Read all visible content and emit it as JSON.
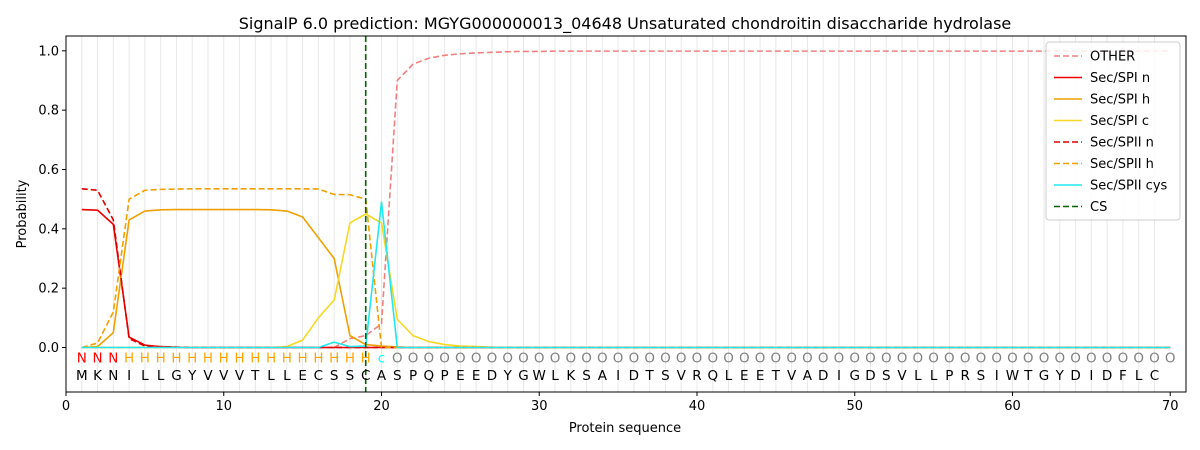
{
  "chart_data": {
    "type": "line",
    "title": "SignalP 6.0 prediction: MGYG000000013_04648 Unsaturated chondroitin disaccharide hydrolase",
    "xlabel": "Protein sequence",
    "ylabel": "Probability",
    "xlim": [
      0,
      71
    ],
    "ylim": [
      -0.15,
      1.05
    ],
    "x_ticks": [
      0,
      10,
      20,
      30,
      40,
      50,
      60,
      70
    ],
    "y_ticks": [
      0.0,
      0.2,
      0.4,
      0.6,
      0.8,
      1.0
    ],
    "x_tick_labels": [
      "0",
      "10",
      "20",
      "30",
      "40",
      "50",
      "60",
      "70"
    ],
    "y_tick_labels": [
      "0.0",
      "0.2",
      "0.4",
      "0.6",
      "0.8",
      "1.0"
    ],
    "grid": "vertical lines at each residue",
    "legend_position": "top-right",
    "sequence": [
      "M",
      "K",
      "N",
      "I",
      "L",
      "L",
      "G",
      "Y",
      "V",
      "V",
      "V",
      "T",
      "L",
      "L",
      "E",
      "C",
      "S",
      "S",
      "C",
      "A",
      "S",
      "P",
      "Q",
      "P",
      "E",
      "E",
      "D",
      "Y",
      "G",
      "W",
      "L",
      "K",
      "S",
      "A",
      "I",
      "D",
      "T",
      "S",
      "V",
      "R",
      "Q",
      "L",
      "E",
      "E",
      "T",
      "V",
      "A",
      "D",
      "I",
      "G",
      "D",
      "S",
      "V",
      "L",
      "L",
      "P",
      "R",
      "S",
      "I",
      "W",
      "T",
      "G",
      "Y",
      "D",
      "I",
      "D",
      "F",
      "L",
      "C"
    ],
    "region_labels": [
      "N",
      "N",
      "N",
      "H",
      "H",
      "H",
      "H",
      "H",
      "H",
      "H",
      "H",
      "H",
      "H",
      "H",
      "H",
      "H",
      "H",
      "H",
      "H",
      "c",
      "O",
      "O",
      "O",
      "O",
      "O",
      "O",
      "O",
      "O",
      "O",
      "O",
      "O",
      "O",
      "O",
      "O",
      "O",
      "O",
      "O",
      "O",
      "O",
      "O",
      "O",
      "O",
      "O",
      "O",
      "O",
      "O",
      "O",
      "O",
      "O",
      "O",
      "O",
      "O",
      "O",
      "O",
      "O",
      "O",
      "O",
      "O",
      "O",
      "O",
      "O",
      "O",
      "O",
      "O",
      "O",
      "O",
      "O",
      "O",
      "O",
      "O"
    ],
    "region_colors": {
      "N": "#ff0000",
      "H": "#ffa500",
      "c": "#00ffff",
      "O": "#808080"
    },
    "cleavage_site": 19,
    "series": [
      {
        "name": "OTHER",
        "color": "#f08080",
        "dash": "dashed",
        "values": [
          0.0,
          0.0,
          0.0,
          0.0,
          0.0,
          0.0,
          0.0,
          0.0,
          0.0,
          0.0,
          0.0,
          0.0,
          0.0,
          0.0,
          0.0,
          0.0,
          0.0,
          0.03,
          0.04,
          0.08,
          0.9,
          0.955,
          0.975,
          0.985,
          0.99,
          0.993,
          0.995,
          0.997,
          0.998,
          0.998,
          0.999,
          0.999,
          0.999,
          0.999,
          0.999,
          0.999,
          0.999,
          0.999,
          0.999,
          0.999,
          0.999,
          0.999,
          0.999,
          0.999,
          0.999,
          0.999,
          0.999,
          0.999,
          0.999,
          0.999,
          0.999,
          0.999,
          0.999,
          0.999,
          0.999,
          0.999,
          0.999,
          0.999,
          0.999,
          0.999,
          0.999,
          0.999,
          0.999,
          0.999,
          0.999,
          0.999,
          0.999,
          0.999,
          0.999,
          0.999
        ]
      },
      {
        "name": "Sec/SPI n",
        "color": "#ee0000",
        "dash": "solid",
        "values": [
          0.465,
          0.463,
          0.415,
          0.035,
          0.008,
          0.003,
          0.001,
          0.0,
          0.0,
          0.0,
          0.0,
          0.0,
          0.0,
          0.0,
          0.0,
          0.0,
          0.0,
          0.0,
          0.0,
          0.0,
          0.0,
          0.0,
          0.0,
          0.0,
          0.0,
          0.0,
          0.0,
          0.0,
          0.0,
          0.0,
          0.0,
          0.0,
          0.0,
          0.0,
          0.0,
          0.0,
          0.0,
          0.0,
          0.0,
          0.0,
          0.0,
          0.0,
          0.0,
          0.0,
          0.0,
          0.0,
          0.0,
          0.0,
          0.0,
          0.0,
          0.0,
          0.0,
          0.0,
          0.0,
          0.0,
          0.0,
          0.0,
          0.0,
          0.0,
          0.0,
          0.0,
          0.0,
          0.0,
          0.0,
          0.0,
          0.0,
          0.0,
          0.0,
          0.0,
          0.0
        ]
      },
      {
        "name": "Sec/SPI h",
        "color": "#f0a000",
        "dash": "solid",
        "values": [
          0.0,
          0.003,
          0.05,
          0.43,
          0.46,
          0.464,
          0.465,
          0.465,
          0.465,
          0.465,
          0.465,
          0.465,
          0.464,
          0.46,
          0.44,
          0.37,
          0.3,
          0.04,
          0.01,
          0.005,
          0.002,
          0.0,
          0.0,
          0.0,
          0.0,
          0.0,
          0.0,
          0.0,
          0.0,
          0.0,
          0.0,
          0.0,
          0.0,
          0.0,
          0.0,
          0.0,
          0.0,
          0.0,
          0.0,
          0.0,
          0.0,
          0.0,
          0.0,
          0.0,
          0.0,
          0.0,
          0.0,
          0.0,
          0.0,
          0.0,
          0.0,
          0.0,
          0.0,
          0.0,
          0.0,
          0.0,
          0.0,
          0.0,
          0.0,
          0.0,
          0.0,
          0.0,
          0.0,
          0.0,
          0.0,
          0.0,
          0.0,
          0.0,
          0.0,
          0.0
        ]
      },
      {
        "name": "Sec/SPI c",
        "color": "#f8d820",
        "dash": "solid",
        "values": [
          0.0,
          0.0,
          0.0,
          0.0,
          0.0,
          0.0,
          0.0,
          0.0,
          0.0,
          0.0,
          0.0,
          0.0,
          0.0,
          0.003,
          0.025,
          0.1,
          0.16,
          0.42,
          0.45,
          0.42,
          0.095,
          0.04,
          0.02,
          0.01,
          0.005,
          0.003,
          0.001,
          0.0,
          0.0,
          0.0,
          0.0,
          0.0,
          0.0,
          0.0,
          0.0,
          0.0,
          0.0,
          0.0,
          0.0,
          0.0,
          0.0,
          0.0,
          0.0,
          0.0,
          0.0,
          0.0,
          0.0,
          0.0,
          0.0,
          0.0,
          0.0,
          0.0,
          0.0,
          0.0,
          0.0,
          0.0,
          0.0,
          0.0,
          0.0,
          0.0,
          0.0,
          0.0,
          0.0,
          0.0,
          0.0,
          0.0,
          0.0,
          0.0,
          0.0,
          0.0
        ]
      },
      {
        "name": "Sec/SPII n",
        "color": "#dd0000",
        "dash": "dashed",
        "values": [
          0.535,
          0.53,
          0.43,
          0.03,
          0.005,
          0.002,
          0.001,
          0.0,
          0.0,
          0.0,
          0.0,
          0.0,
          0.0,
          0.0,
          0.0,
          0.0,
          0.0,
          0.0,
          0.0,
          0.0,
          0.0,
          0.0,
          0.0,
          0.0,
          0.0,
          0.0,
          0.0,
          0.0,
          0.0,
          0.0,
          0.0,
          0.0,
          0.0,
          0.0,
          0.0,
          0.0,
          0.0,
          0.0,
          0.0,
          0.0,
          0.0,
          0.0,
          0.0,
          0.0,
          0.0,
          0.0,
          0.0,
          0.0,
          0.0,
          0.0,
          0.0,
          0.0,
          0.0,
          0.0,
          0.0,
          0.0,
          0.0,
          0.0,
          0.0,
          0.0,
          0.0,
          0.0,
          0.0,
          0.0,
          0.0,
          0.0,
          0.0,
          0.0,
          0.0,
          0.0
        ]
      },
      {
        "name": "Sec/SPII h",
        "color": "#f0a000",
        "dash": "dashed",
        "values": [
          0.0,
          0.015,
          0.12,
          0.5,
          0.53,
          0.533,
          0.534,
          0.535,
          0.535,
          0.535,
          0.535,
          0.535,
          0.535,
          0.535,
          0.535,
          0.534,
          0.516,
          0.515,
          0.5,
          0.0,
          0.0,
          0.0,
          0.0,
          0.0,
          0.0,
          0.0,
          0.0,
          0.0,
          0.0,
          0.0,
          0.0,
          0.0,
          0.0,
          0.0,
          0.0,
          0.0,
          0.0,
          0.0,
          0.0,
          0.0,
          0.0,
          0.0,
          0.0,
          0.0,
          0.0,
          0.0,
          0.0,
          0.0,
          0.0,
          0.0,
          0.0,
          0.0,
          0.0,
          0.0,
          0.0,
          0.0,
          0.0,
          0.0,
          0.0,
          0.0,
          0.0,
          0.0,
          0.0,
          0.0,
          0.0,
          0.0,
          0.0,
          0.0,
          0.0,
          0.0
        ]
      },
      {
        "name": "Sec/SPII cys",
        "color": "#20e8f0",
        "dash": "solid",
        "values": [
          0.0,
          0.0,
          0.0,
          0.0,
          0.0,
          0.0,
          0.0,
          0.0,
          0.0,
          0.0,
          0.0,
          0.0,
          0.0,
          0.0,
          0.0,
          0.0,
          0.018,
          0.003,
          0.005,
          0.49,
          0.0,
          0.0,
          0.0,
          0.0,
          0.0,
          0.0,
          0.0,
          0.0,
          0.0,
          0.0,
          0.0,
          0.0,
          0.0,
          0.0,
          0.0,
          0.0,
          0.0,
          0.0,
          0.0,
          0.0,
          0.0,
          0.0,
          0.0,
          0.0,
          0.0,
          0.0,
          0.0,
          0.0,
          0.0,
          0.0,
          0.0,
          0.0,
          0.0,
          0.0,
          0.0,
          0.0,
          0.0,
          0.0,
          0.0,
          0.0,
          0.0,
          0.0,
          0.0,
          0.0,
          0.0,
          0.0,
          0.0,
          0.0,
          0.0,
          0.0
        ]
      },
      {
        "name": "CS",
        "color": "#006400",
        "dash": "dashed",
        "values": []
      }
    ]
  }
}
